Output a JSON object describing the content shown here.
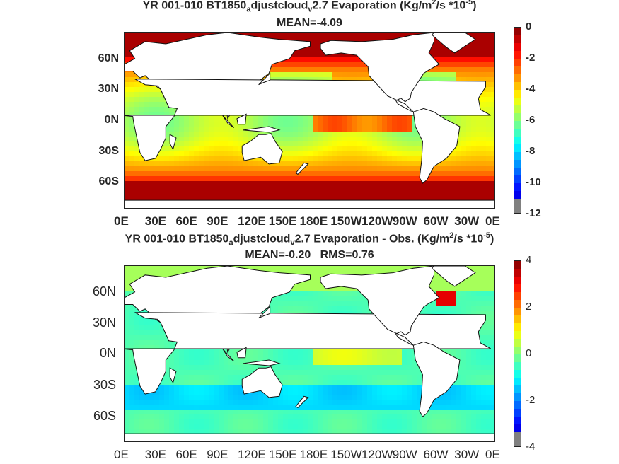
{
  "chart_data": [
    {
      "type": "heatmap",
      "title_line1_parts": [
        "YR 001-010 BT1850",
        "a",
        "djustcloud",
        "v",
        "2.7  Evaporation (Kg/m",
        "2",
        "/s *10",
        "-5",
        ")"
      ],
      "title_line2": "MEAN=-4.09",
      "y_tick_labels": [
        "60N",
        "30N",
        "0N",
        "30S",
        "60S"
      ],
      "x_tick_labels": [
        "0E",
        "30E",
        "60E",
        "90E",
        "120E",
        "150E",
        "180E",
        "150W",
        "120W",
        "90W",
        "60W",
        "30W",
        "0E"
      ],
      "colorbar_ticks": [
        "0",
        "-2",
        "-4",
        "-6",
        "-8",
        "-10",
        "-12"
      ],
      "colorbar_range": [
        -12,
        0
      ],
      "mean": -4.09
    },
    {
      "type": "heatmap",
      "title_line1_parts": [
        "YR 001-010 BT1850",
        "a",
        "djustcloud",
        "v",
        "2.7 Evaporation - Obs. (Kg/m",
        "2",
        "/s *10",
        "-5",
        ")"
      ],
      "title_line2": "MEAN=-0.20   RMS=0.76",
      "y_tick_labels": [
        "60N",
        "30N",
        "0N",
        "30S",
        "60S"
      ],
      "x_tick_labels": [
        "0E",
        "30E",
        "60E",
        "90E",
        "120E",
        "150E",
        "180E",
        "150W",
        "120W",
        "90W",
        "60W",
        "30W",
        "0E"
      ],
      "colorbar_ticks": [
        "4",
        "2",
        "0",
        "-2",
        "-4"
      ],
      "colorbar_range": [
        -4,
        4
      ],
      "mean": -0.2,
      "rms": 0.76
    }
  ],
  "colors": {
    "jet": [
      "#00008f",
      "#0000ff",
      "#0080ff",
      "#00ffff",
      "#80ff80",
      "#ffff00",
      "#ff8000",
      "#ff0000",
      "#800000"
    ],
    "land": "#ffffff",
    "offscale": "#808080"
  }
}
